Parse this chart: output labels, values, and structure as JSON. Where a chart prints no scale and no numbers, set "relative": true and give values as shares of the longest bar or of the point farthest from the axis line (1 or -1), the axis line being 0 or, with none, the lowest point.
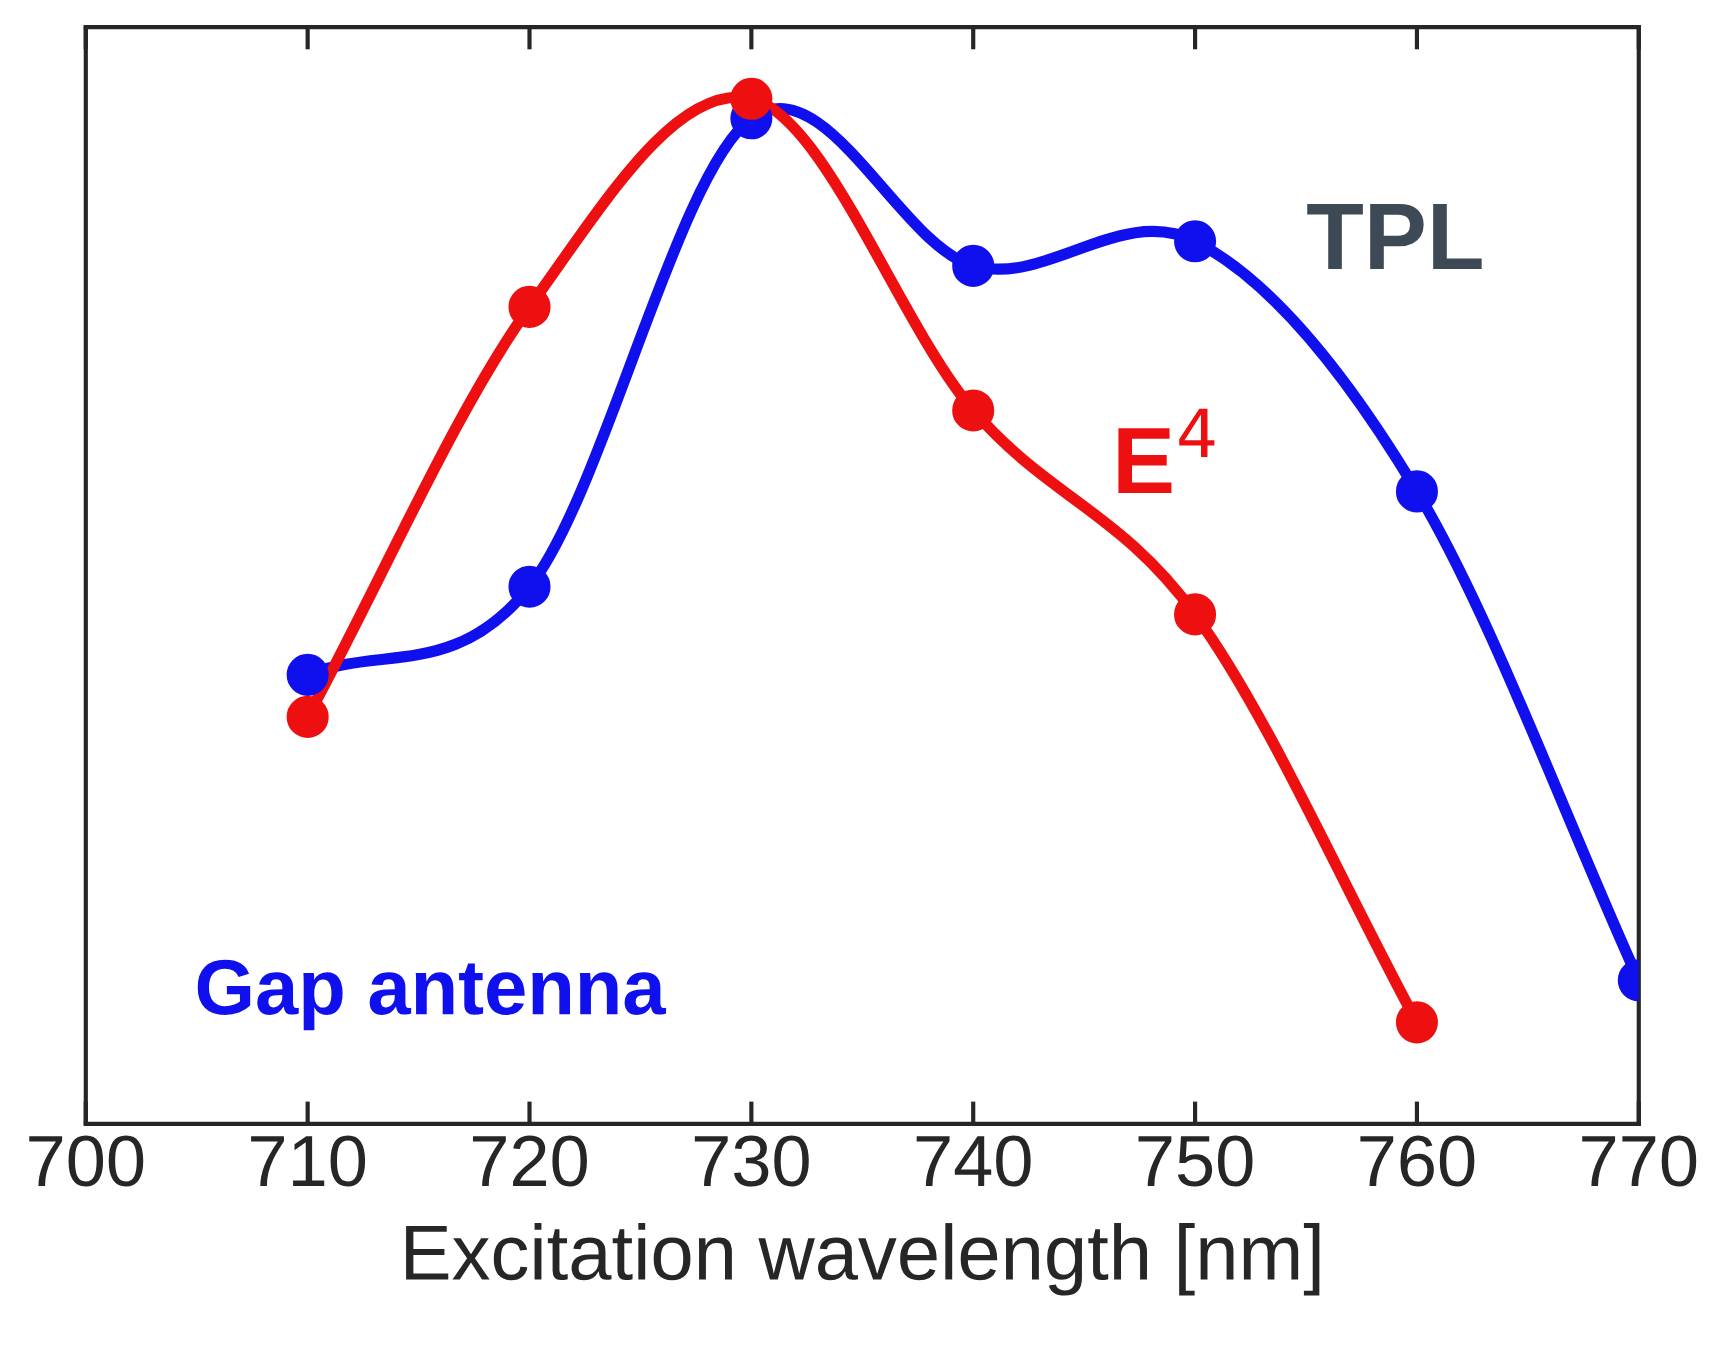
{
  "chart_data": {
    "type": "line",
    "xlabel": "Excitation wavelength [nm]",
    "relative": true,
    "xlim": [
      700,
      770
    ],
    "xticks": [
      700,
      710,
      720,
      730,
      740,
      750,
      760,
      770
    ],
    "marker": "circle",
    "line_style": "solid",
    "legend": false,
    "grid": false,
    "annotations": [
      "Gap antenna"
    ],
    "series": [
      {
        "name": "TPL",
        "color": "#1010ee",
        "x": [
          710,
          720,
          730,
          740,
          750,
          760,
          770
        ],
        "values": [
          0.438,
          0.524,
          0.981,
          0.837,
          0.861,
          0.617,
          0.14
        ]
      },
      {
        "name": "E$^{4}$",
        "color": "#ee1010",
        "x": [
          710,
          720,
          730,
          740,
          750,
          760
        ],
        "values": [
          0.397,
          0.797,
          1.0,
          0.696,
          0.497,
          0.099
        ]
      }
    ]
  }
}
